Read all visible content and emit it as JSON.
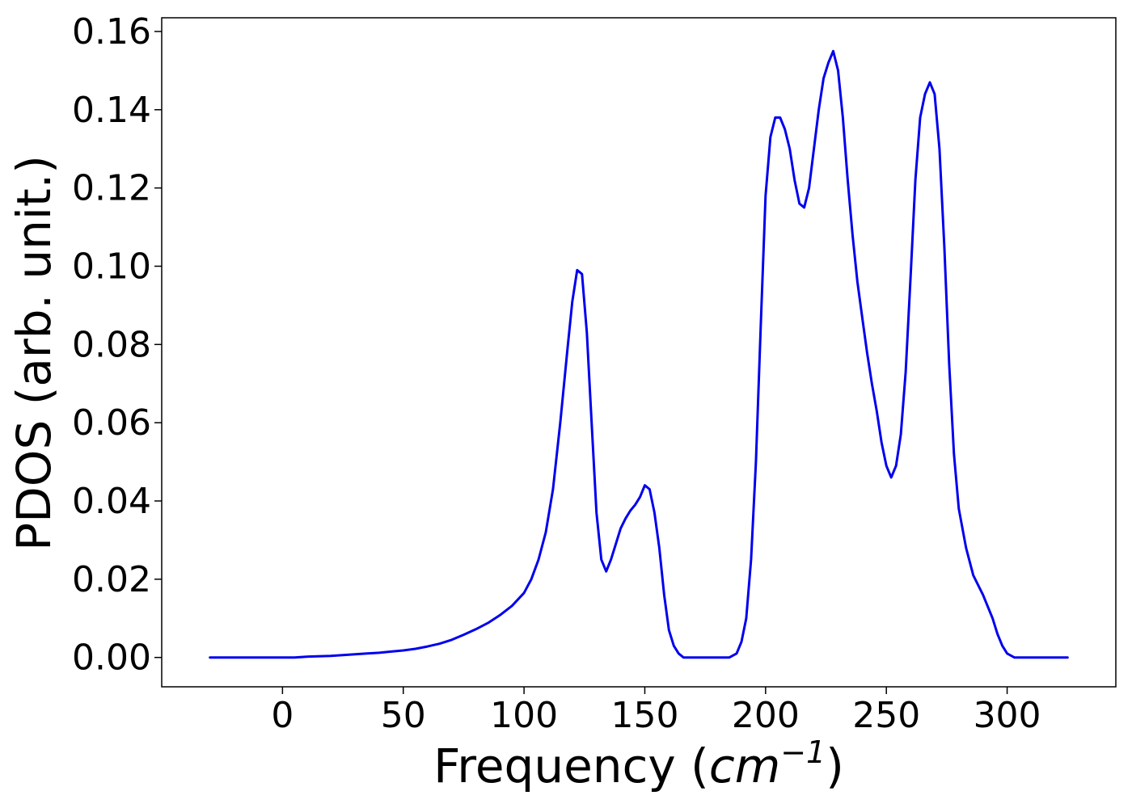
{
  "chart_data": {
    "type": "line",
    "xlabel_prefix": "Frequency (",
    "xlabel_unit_base": "cm",
    "xlabel_unit_exp": "−1",
    "xlabel_suffix": ")",
    "ylabel": "PDOS (arb. unit.)",
    "xlim": [
      -50,
      345
    ],
    "ylim": [
      -0.0075,
      0.1635
    ],
    "x_ticks": [
      0,
      50,
      100,
      150,
      200,
      250,
      300
    ],
    "x_tick_labels": [
      "0",
      "50",
      "100",
      "150",
      "200",
      "250",
      "300"
    ],
    "y_ticks": [
      0.0,
      0.02,
      0.04,
      0.06,
      0.08,
      0.1,
      0.12,
      0.14,
      0.16
    ],
    "y_tick_labels": [
      "0.00",
      "0.02",
      "0.04",
      "0.06",
      "0.08",
      "0.10",
      "0.12",
      "0.14",
      "0.16"
    ],
    "grid": false,
    "line_color": "#0000ee",
    "series": [
      {
        "x": [
          -30,
          0,
          5,
          10,
          20,
          25,
          30,
          35,
          40,
          45,
          50,
          55,
          60,
          65,
          70,
          75,
          80,
          85,
          90,
          95,
          100,
          103,
          106,
          109,
          112,
          115,
          118,
          120,
          122,
          124,
          126,
          128,
          130,
          132,
          134,
          136,
          138,
          140,
          142,
          144,
          146,
          148,
          150,
          152,
          154,
          156,
          158,
          160,
          162,
          164,
          166,
          168,
          175,
          185,
          188,
          190,
          192,
          194,
          196,
          198,
          200,
          202,
          204,
          206,
          208,
          210,
          212,
          214,
          216,
          218,
          220,
          222,
          224,
          226,
          228,
          230,
          232,
          234,
          236,
          238,
          240,
          242,
          244,
          246,
          248,
          250,
          252,
          254,
          256,
          258,
          260,
          262,
          264,
          266,
          268,
          270,
          272,
          274,
          276,
          278,
          280,
          283,
          286,
          290,
          294,
          296,
          298,
          300,
          303,
          310,
          325
        ],
        "y": [
          0.0,
          0.0,
          0.0,
          0.0002,
          0.0004,
          0.0006,
          0.0008,
          0.001,
          0.0012,
          0.0015,
          0.0018,
          0.0022,
          0.0028,
          0.0035,
          0.0045,
          0.0058,
          0.0072,
          0.0088,
          0.0108,
          0.0132,
          0.0165,
          0.02,
          0.025,
          0.032,
          0.043,
          0.06,
          0.079,
          0.091,
          0.099,
          0.098,
          0.083,
          0.06,
          0.037,
          0.025,
          0.022,
          0.025,
          0.029,
          0.033,
          0.0355,
          0.0375,
          0.039,
          0.041,
          0.044,
          0.043,
          0.037,
          0.028,
          0.016,
          0.007,
          0.003,
          0.001,
          0.0,
          0.0,
          0.0,
          0.0,
          0.001,
          0.004,
          0.01,
          0.025,
          0.05,
          0.085,
          0.118,
          0.133,
          0.138,
          0.138,
          0.135,
          0.13,
          0.122,
          0.116,
          0.115,
          0.12,
          0.13,
          0.14,
          0.148,
          0.152,
          0.155,
          0.15,
          0.138,
          0.122,
          0.108,
          0.096,
          0.087,
          0.078,
          0.07,
          0.063,
          0.055,
          0.049,
          0.046,
          0.049,
          0.057,
          0.073,
          0.097,
          0.122,
          0.138,
          0.144,
          0.147,
          0.144,
          0.13,
          0.105,
          0.075,
          0.052,
          0.038,
          0.028,
          0.021,
          0.016,
          0.01,
          0.006,
          0.003,
          0.001,
          0.0,
          0.0,
          0.0
        ]
      }
    ]
  }
}
